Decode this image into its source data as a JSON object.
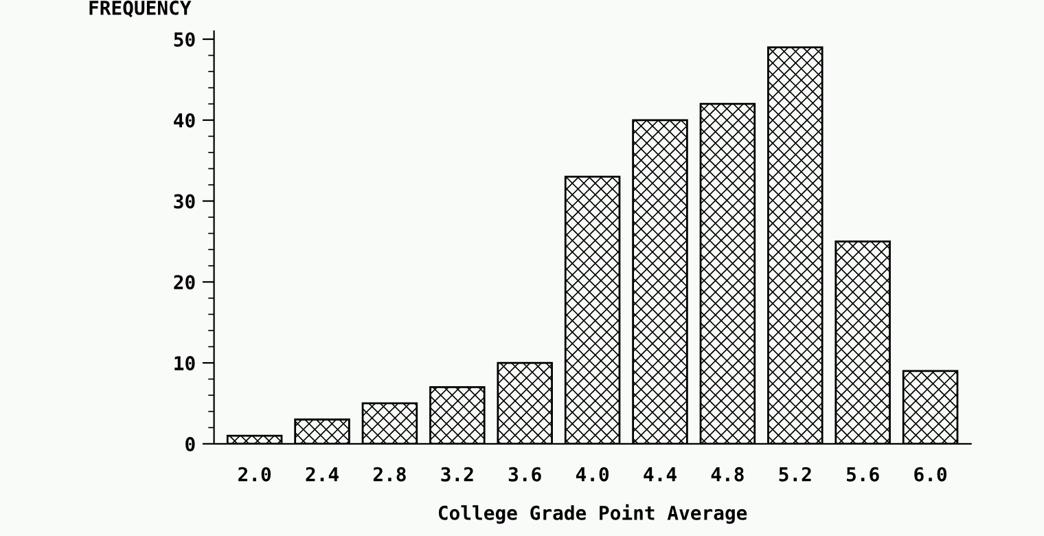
{
  "chart_data": {
    "type": "bar",
    "ylabel": "FREQUENCY",
    "xlabel": "College Grade Point Average",
    "categories": [
      "2.0",
      "2.4",
      "2.8",
      "3.2",
      "3.6",
      "4.0",
      "4.4",
      "4.8",
      "5.2",
      "5.6",
      "6.0"
    ],
    "values": [
      1,
      3,
      5,
      7,
      10,
      33,
      40,
      42,
      49,
      25,
      9
    ],
    "color": "#000000",
    "ylim": [
      0,
      51
    ],
    "yticks": [
      0,
      10,
      20,
      30,
      40,
      50
    ],
    "grid": false
  }
}
